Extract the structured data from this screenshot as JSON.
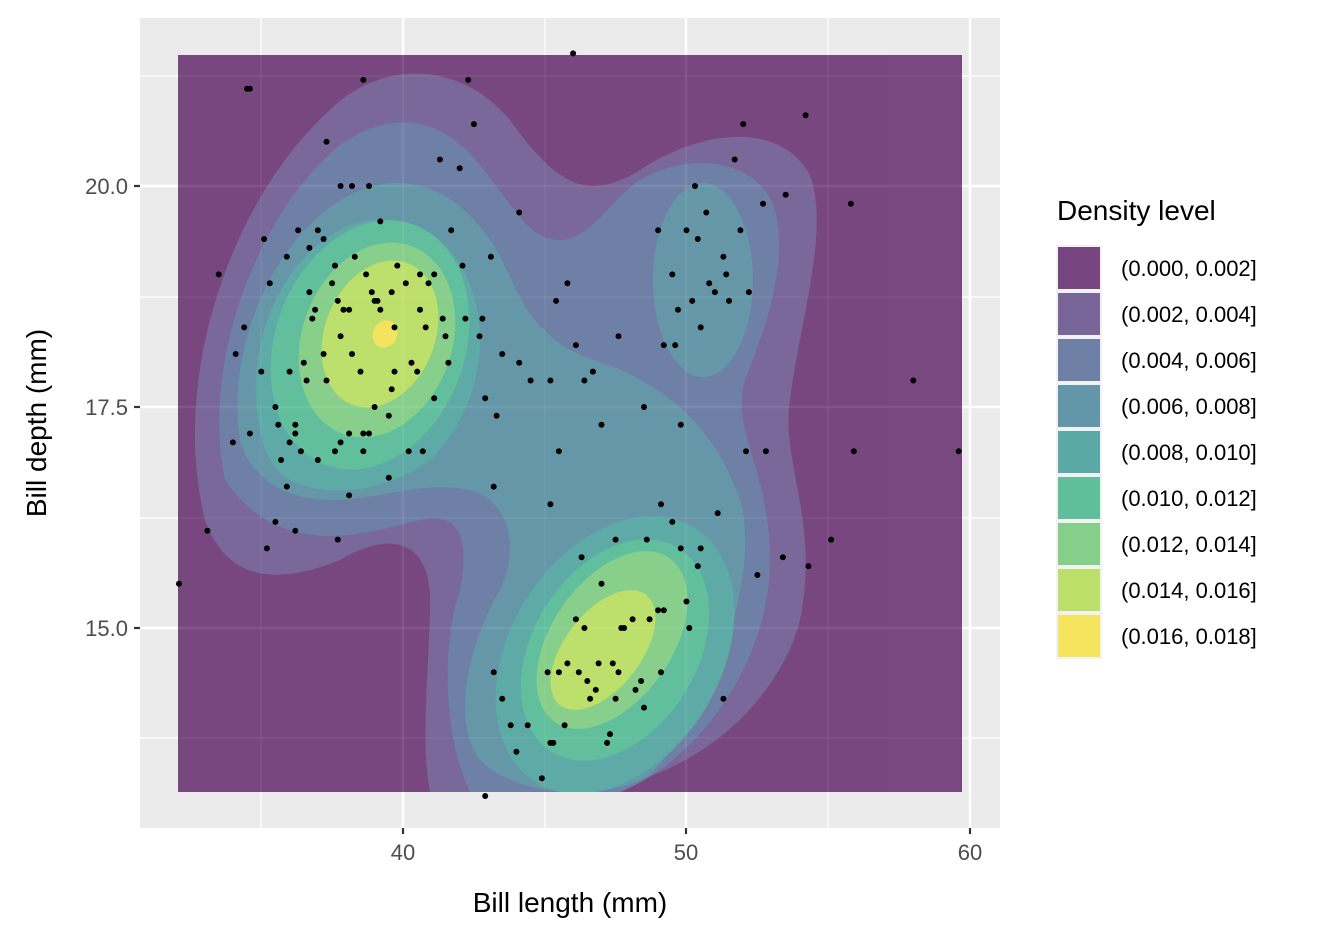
{
  "chart_data": {
    "type": "contour_filled_with_scatter",
    "title": "",
    "xlabel": "Bill length (mm)",
    "ylabel": "Bill depth (mm)",
    "xlim": [
      31.5,
      61
    ],
    "ylim": [
      12.7,
      21.9
    ],
    "x_ticks": [
      40,
      50,
      60
    ],
    "x_tick_labels": [
      "40",
      "50",
      "60"
    ],
    "y_ticks": [
      15.0,
      17.5,
      20.0
    ],
    "y_tick_labels": [
      "15.0",
      "17.5",
      "20.0"
    ],
    "grid": true,
    "legend": {
      "title": "Density level",
      "position": "right",
      "entries": [
        {
          "label": "(0.000, 0.002]",
          "color": "#77457f"
        },
        {
          "label": "(0.002, 0.004]",
          "color": "#786698"
        },
        {
          "label": "(0.004, 0.006]",
          "color": "#6e7fa6"
        },
        {
          "label": "(0.006, 0.008]",
          "color": "#6396a8"
        },
        {
          "label": "(0.008, 0.010]",
          "color": "#5ba9a6"
        },
        {
          "label": "(0.010, 0.012]",
          "color": "#5fbf9c"
        },
        {
          "label": "(0.012, 0.014]",
          "color": "#86cf8a"
        },
        {
          "label": "(0.014, 0.016]",
          "color": "#bde06a"
        },
        {
          "label": "(0.016, 0.018]",
          "color": "#f4e45e"
        }
      ]
    },
    "density_peaks": [
      {
        "x": 39.2,
        "y": 18.3,
        "level": "(0.016, 0.018]"
      },
      {
        "x": 46.8,
        "y": 14.6,
        "level": "(0.014, 0.016]"
      },
      {
        "x": 50.2,
        "y": 18.8,
        "level": "(0.006, 0.008]"
      }
    ],
    "points": [
      [
        32.1,
        15.5
      ],
      [
        33.1,
        16.1
      ],
      [
        33.5,
        19.0
      ],
      [
        34.0,
        17.1
      ],
      [
        34.1,
        18.1
      ],
      [
        34.4,
        18.4
      ],
      [
        34.5,
        21.1
      ],
      [
        34.6,
        17.2
      ],
      [
        34.6,
        21.1
      ],
      [
        35.0,
        17.9
      ],
      [
        35.1,
        19.4
      ],
      [
        35.2,
        15.9
      ],
      [
        35.3,
        18.9
      ],
      [
        35.5,
        16.2
      ],
      [
        35.5,
        17.5
      ],
      [
        35.6,
        17.3
      ],
      [
        35.7,
        16.9
      ],
      [
        35.9,
        19.2
      ],
      [
        35.9,
        16.6
      ],
      [
        36.0,
        17.9
      ],
      [
        36.0,
        17.1
      ],
      [
        36.2,
        17.2
      ],
      [
        36.2,
        16.1
      ],
      [
        36.2,
        17.3
      ],
      [
        36.3,
        19.5
      ],
      [
        36.4,
        17.0
      ],
      [
        36.5,
        18.0
      ],
      [
        36.6,
        17.8
      ],
      [
        36.7,
        19.3
      ],
      [
        36.7,
        18.8
      ],
      [
        36.8,
        18.5
      ],
      [
        36.9,
        18.6
      ],
      [
        37.0,
        16.9
      ],
      [
        37.0,
        19.5
      ],
      [
        37.2,
        18.1
      ],
      [
        37.2,
        19.4
      ],
      [
        37.3,
        17.8
      ],
      [
        37.3,
        20.5
      ],
      [
        37.5,
        18.9
      ],
      [
        37.6,
        19.1
      ],
      [
        37.6,
        17.0
      ],
      [
        37.7,
        18.7
      ],
      [
        37.7,
        16.0
      ],
      [
        37.8,
        18.3
      ],
      [
        37.8,
        17.1
      ],
      [
        37.8,
        20.0
      ],
      [
        37.9,
        18.6
      ],
      [
        38.1,
        18.6
      ],
      [
        38.1,
        17.2
      ],
      [
        38.1,
        16.5
      ],
      [
        38.2,
        18.1
      ],
      [
        38.2,
        20.0
      ],
      [
        38.3,
        19.2
      ],
      [
        38.5,
        17.9
      ],
      [
        38.6,
        21.2
      ],
      [
        38.6,
        17.2
      ],
      [
        38.6,
        17.0
      ],
      [
        38.7,
        19.0
      ],
      [
        38.8,
        17.2
      ],
      [
        38.8,
        20.0
      ],
      [
        38.9,
        18.8
      ],
      [
        39.0,
        17.5
      ],
      [
        39.0,
        18.7
      ],
      [
        39.1,
        18.7
      ],
      [
        39.2,
        19.6
      ],
      [
        39.2,
        18.6
      ],
      [
        39.5,
        17.4
      ],
      [
        39.5,
        16.7
      ],
      [
        39.6,
        17.7
      ],
      [
        39.6,
        18.8
      ],
      [
        39.7,
        18.4
      ],
      [
        39.7,
        17.9
      ],
      [
        39.8,
        19.1
      ],
      [
        40.1,
        18.9
      ],
      [
        40.2,
        17.0
      ],
      [
        40.3,
        18.0
      ],
      [
        40.5,
        17.9
      ],
      [
        40.6,
        18.6
      ],
      [
        40.6,
        19.0
      ],
      [
        40.7,
        17.0
      ],
      [
        40.8,
        18.4
      ],
      [
        40.9,
        18.9
      ],
      [
        41.1,
        17.6
      ],
      [
        41.1,
        19.0
      ],
      [
        41.3,
        20.3
      ],
      [
        41.4,
        18.5
      ],
      [
        41.5,
        18.3
      ],
      [
        41.6,
        18.0
      ],
      [
        41.7,
        19.5
      ],
      [
        42.0,
        20.2
      ],
      [
        42.1,
        19.1
      ],
      [
        42.2,
        18.5
      ],
      [
        42.3,
        21.2
      ],
      [
        42.5,
        20.7
      ],
      [
        42.7,
        18.3
      ],
      [
        42.8,
        18.5
      ],
      [
        42.9,
        17.6
      ],
      [
        43.1,
        19.2
      ],
      [
        43.2,
        16.6
      ],
      [
        43.3,
        17.4
      ],
      [
        43.5,
        18.1
      ],
      [
        44.1,
        19.7
      ],
      [
        44.1,
        18.0
      ],
      [
        44.5,
        17.8
      ],
      [
        45.2,
        17.8
      ],
      [
        45.4,
        18.7
      ],
      [
        45.5,
        17.0
      ],
      [
        45.8,
        18.9
      ],
      [
        46.0,
        21.5
      ],
      [
        46.1,
        18.2
      ],
      [
        46.4,
        17.8
      ],
      [
        46.7,
        17.9
      ],
      [
        47.0,
        17.3
      ],
      [
        47.6,
        18.3
      ],
      [
        48.5,
        17.5
      ],
      [
        49.0,
        19.5
      ],
      [
        49.2,
        18.2
      ],
      [
        49.5,
        19.0
      ],
      [
        49.6,
        18.2
      ],
      [
        49.7,
        18.6
      ],
      [
        49.8,
        17.3
      ],
      [
        50.0,
        19.5
      ],
      [
        50.2,
        18.7
      ],
      [
        50.3,
        20.0
      ],
      [
        50.4,
        19.4
      ],
      [
        50.5,
        18.4
      ],
      [
        50.7,
        19.7
      ],
      [
        50.8,
        18.9
      ],
      [
        51.0,
        18.8
      ],
      [
        51.3,
        19.2
      ],
      [
        51.4,
        19.0
      ],
      [
        51.5,
        18.7
      ],
      [
        51.7,
        20.3
      ],
      [
        51.9,
        19.5
      ],
      [
        52.0,
        20.7
      ],
      [
        52.2,
        18.8
      ],
      [
        52.7,
        19.8
      ],
      [
        53.5,
        19.9
      ],
      [
        54.2,
        20.8
      ],
      [
        55.8,
        19.8
      ],
      [
        58.0,
        17.8
      ],
      [
        59.6,
        17.0
      ],
      [
        55.9,
        17.0
      ],
      [
        52.8,
        17.0
      ],
      [
        42.9,
        13.1
      ],
      [
        43.2,
        14.5
      ],
      [
        43.5,
        14.2
      ],
      [
        43.8,
        13.9
      ],
      [
        44.0,
        13.6
      ],
      [
        44.4,
        13.9
      ],
      [
        44.9,
        13.3
      ],
      [
        45.1,
        14.5
      ],
      [
        45.2,
        13.7
      ],
      [
        45.3,
        13.7
      ],
      [
        45.5,
        14.5
      ],
      [
        45.7,
        13.9
      ],
      [
        45.8,
        14.6
      ],
      [
        46.1,
        15.1
      ],
      [
        46.2,
        14.5
      ],
      [
        46.4,
        15.0
      ],
      [
        46.5,
        14.4
      ],
      [
        46.6,
        14.2
      ],
      [
        46.8,
        14.3
      ],
      [
        46.9,
        14.6
      ],
      [
        47.0,
        15.5
      ],
      [
        47.2,
        13.7
      ],
      [
        47.3,
        13.8
      ],
      [
        47.4,
        14.6
      ],
      [
        47.5,
        14.2
      ],
      [
        47.6,
        14.5
      ],
      [
        47.7,
        15.0
      ],
      [
        47.8,
        15.0
      ],
      [
        48.1,
        15.1
      ],
      [
        48.2,
        14.3
      ],
      [
        48.4,
        14.4
      ],
      [
        48.5,
        14.1
      ],
      [
        48.7,
        15.1
      ],
      [
        49.0,
        15.2
      ],
      [
        49.1,
        14.5
      ],
      [
        49.2,
        15.2
      ],
      [
        49.5,
        16.2
      ],
      [
        49.8,
        15.9
      ],
      [
        50.0,
        15.3
      ],
      [
        50.1,
        15.0
      ],
      [
        50.4,
        15.7
      ],
      [
        50.5,
        15.9
      ],
      [
        51.1,
        16.3
      ],
      [
        51.3,
        14.2
      ],
      [
        52.1,
        17.0
      ],
      [
        52.5,
        15.6
      ],
      [
        53.4,
        15.8
      ],
      [
        54.3,
        15.7
      ],
      [
        55.1,
        16.0
      ],
      [
        45.2,
        16.4
      ],
      [
        46.3,
        15.8
      ],
      [
        47.5,
        16.0
      ],
      [
        48.6,
        16.0
      ],
      [
        49.1,
        16.4
      ]
    ]
  }
}
